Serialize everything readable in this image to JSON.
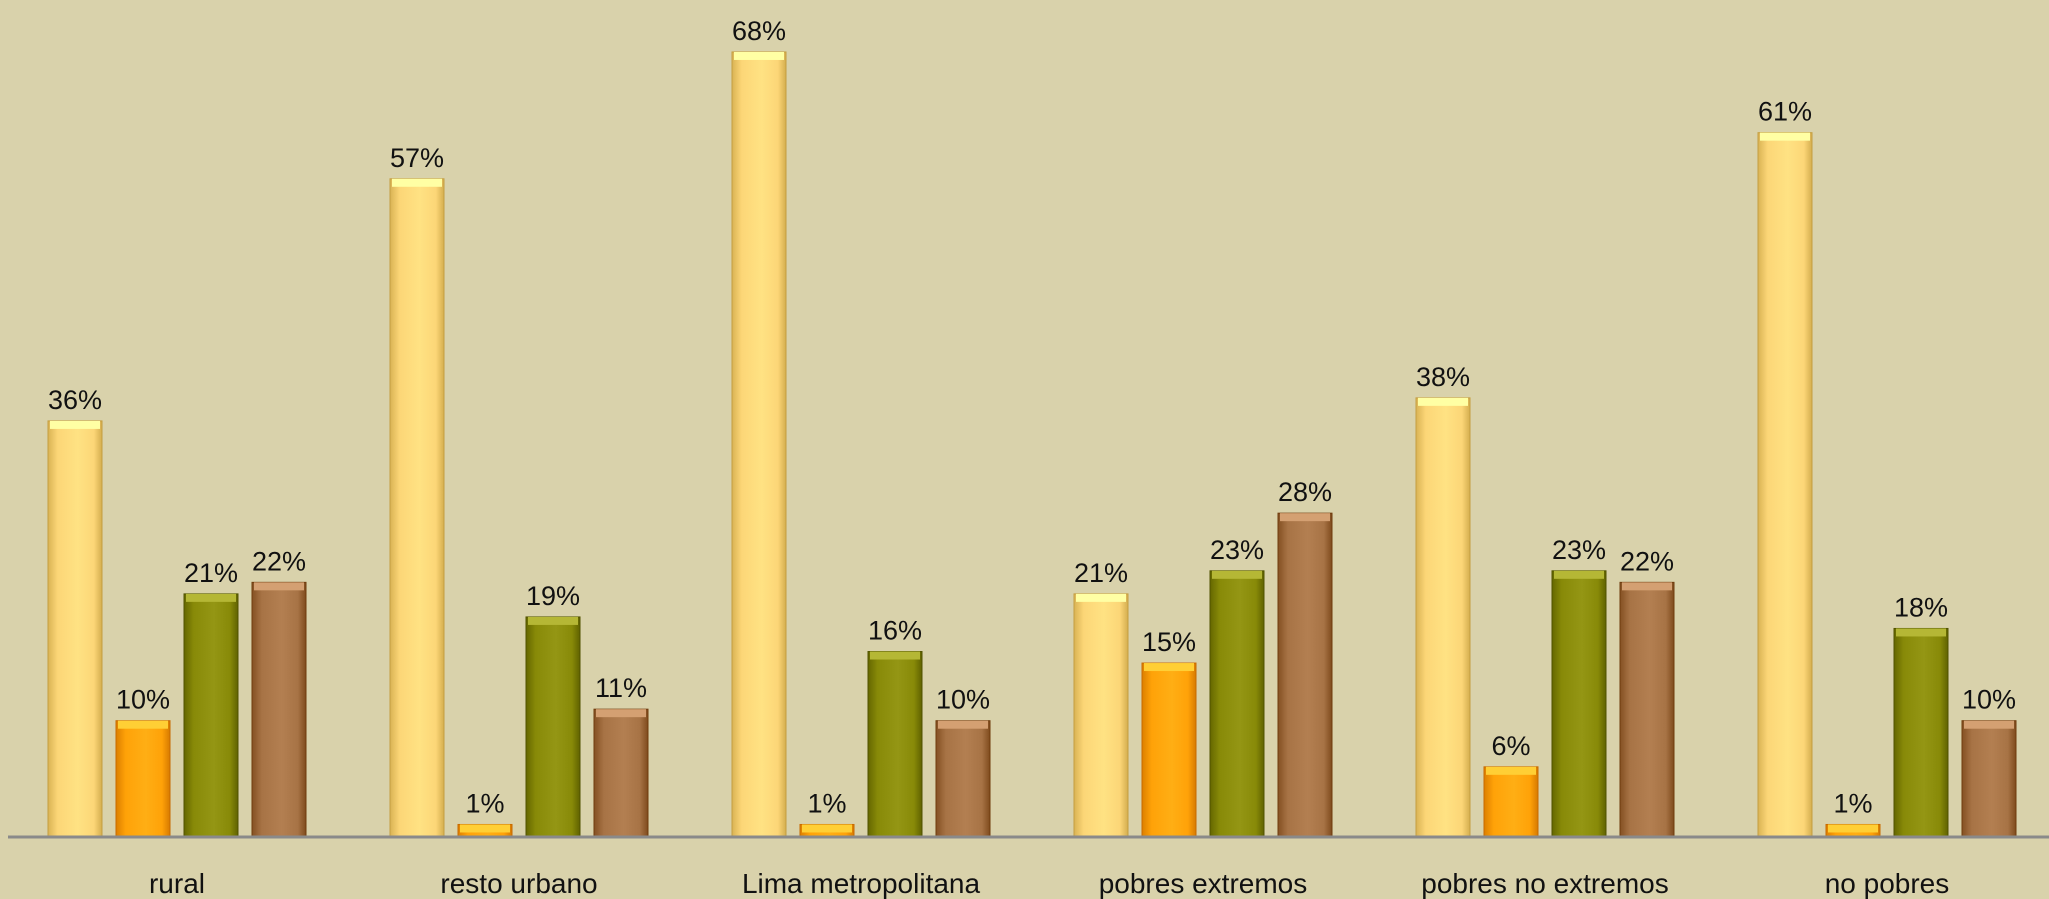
{
  "chart_data": {
    "type": "bar",
    "title": "",
    "xlabel": "",
    "ylabel": "",
    "ylim": [
      0,
      70
    ],
    "grid": false,
    "legend": "none",
    "categories": [
      "rural",
      "resto urbano",
      "Lima metropolitana",
      "pobres extremos",
      "pobres no extremos",
      "no pobres"
    ],
    "series": [
      {
        "color": "#fcd677",
        "values": [
          36,
          57,
          68,
          21,
          38,
          61
        ],
        "labels": [
          "36%",
          "57%",
          "68%",
          "21%",
          "38%",
          "61%"
        ]
      },
      {
        "color": "#ffa208",
        "values": [
          10,
          1,
          1,
          15,
          6,
          1
        ],
        "labels": [
          "10%",
          "1%",
          "1%",
          "15%",
          "6%",
          "1%"
        ]
      },
      {
        "color": "#888a08",
        "values": [
          21,
          19,
          16,
          23,
          23,
          18
        ],
        "labels": [
          "21%",
          "19%",
          "16%",
          "23%",
          "23%",
          "18%"
        ]
      },
      {
        "color": "#a77345",
        "values": [
          22,
          11,
          10,
          28,
          22,
          10
        ],
        "labels": [
          "22%",
          "11%",
          "10%",
          "28%",
          "22%",
          "10%"
        ]
      }
    ]
  }
}
